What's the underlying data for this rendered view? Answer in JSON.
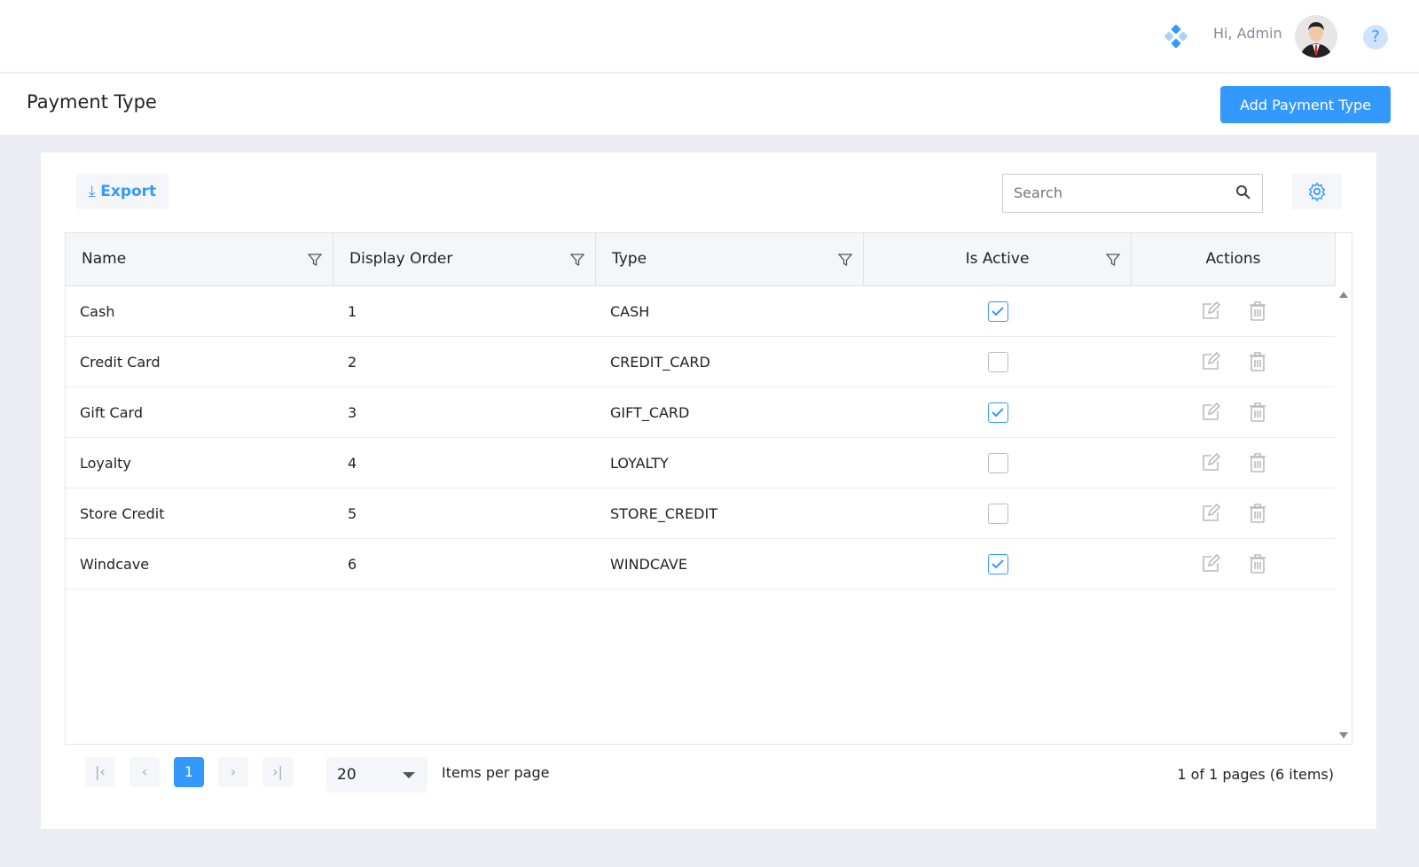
{
  "header": {
    "greeting": "Hi, Admin"
  },
  "page": {
    "title": "Payment Type",
    "add_button": "Add Payment Type"
  },
  "toolbar": {
    "export": "Export",
    "search_placeholder": "Search"
  },
  "table": {
    "columns": [
      "Name",
      "Display Order",
      "Type",
      "Is Active",
      "Actions"
    ],
    "rows": [
      {
        "name": "Cash",
        "order": "1",
        "type": "CASH",
        "active": true
      },
      {
        "name": "Credit Card",
        "order": "2",
        "type": "CREDIT_CARD",
        "active": false
      },
      {
        "name": "Gift Card",
        "order": "3",
        "type": "GIFT_CARD",
        "active": true
      },
      {
        "name": "Loyalty",
        "order": "4",
        "type": "LOYALTY",
        "active": false
      },
      {
        "name": "Store Credit",
        "order": "5",
        "type": "STORE_CREDIT",
        "active": false
      },
      {
        "name": "Windcave",
        "order": "6",
        "type": "WINDCAVE",
        "active": true
      }
    ]
  },
  "pager": {
    "current": "1",
    "page_size": "20",
    "items_per_page": "Items per page",
    "info": "1 of 1 pages (6 items)"
  },
  "colors": {
    "accent": "#3399ff"
  }
}
